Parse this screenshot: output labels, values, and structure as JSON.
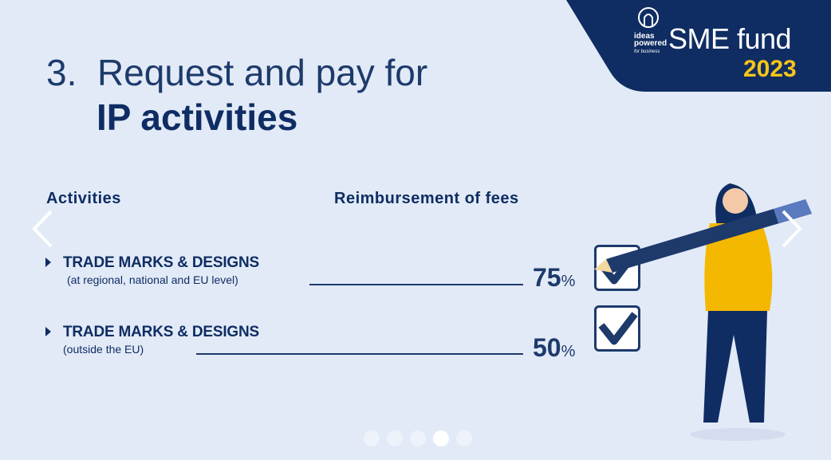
{
  "brand": {
    "logo_text": "ideas powered for business",
    "name": "SME fund",
    "year": "2023",
    "accent": "#f5c518",
    "navy": "#0f2d63"
  },
  "title": {
    "number": "3.",
    "line1": "Request and pay for",
    "line2": "IP activities"
  },
  "headers": {
    "activities": "Activities",
    "reimbursement": "Reimbursement of fees"
  },
  "rows": [
    {
      "title": "TRADE MARKS & DESIGNS",
      "subtitle": "(at regional, national and EU level)",
      "value": "75",
      "unit": "%"
    },
    {
      "title": "TRADE MARKS & DESIGNS",
      "subtitle": "(outside the EU)",
      "value": "50",
      "unit": "%"
    }
  ],
  "carousel": {
    "slides": 5,
    "active": 4
  }
}
